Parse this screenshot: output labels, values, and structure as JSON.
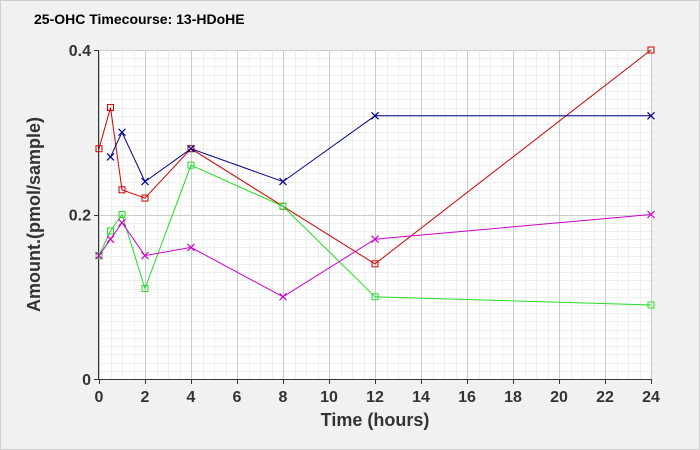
{
  "chart_data": {
    "type": "line",
    "title": "25-OHC Timecourse: 13-HDoHE",
    "xlabel": "Time (hours)",
    "ylabel": "Amount.(pmol/sample)",
    "xlim": [
      0,
      24
    ],
    "ylim": [
      0,
      0.4
    ],
    "x_ticks": [
      0,
      2,
      4,
      6,
      8,
      10,
      12,
      14,
      16,
      18,
      20,
      22,
      24
    ],
    "y_ticks": [
      0,
      0.2,
      0.4
    ],
    "x_tick_labels": [
      "0",
      "2",
      "4",
      "6",
      "8",
      "10",
      "12",
      "14",
      "16",
      "18",
      "20",
      "22",
      "24"
    ],
    "y_tick_labels": [
      "0",
      "0.2",
      "0.4"
    ],
    "grid": true,
    "legend": "none",
    "series": [
      {
        "color": "#cc0000",
        "marker": "square",
        "x": [
          0,
          0.5,
          1,
          2,
          4,
          8,
          12,
          24
        ],
        "values": [
          0.28,
          0.33,
          0.23,
          0.22,
          0.28,
          0.21,
          0.14,
          0.4
        ]
      },
      {
        "color": "#00008b",
        "marker": "x",
        "x": [
          0.5,
          1,
          2,
          4,
          8,
          12,
          24
        ],
        "values": [
          0.27,
          0.3,
          0.24,
          0.28,
          0.24,
          0.32,
          0.32
        ]
      },
      {
        "color": "#22dd22",
        "marker": "square",
        "x": [
          0,
          0.5,
          1,
          2,
          4,
          8,
          12,
          24
        ],
        "values": [
          0.15,
          0.18,
          0.2,
          0.11,
          0.26,
          0.21,
          0.1,
          0.09
        ]
      },
      {
        "color": "#cc00cc",
        "marker": "x",
        "x": [
          0,
          0.5,
          1,
          2,
          4,
          8,
          12,
          24
        ],
        "values": [
          0.15,
          0.17,
          0.19,
          0.15,
          0.16,
          0.1,
          0.17,
          0.2
        ]
      }
    ]
  }
}
